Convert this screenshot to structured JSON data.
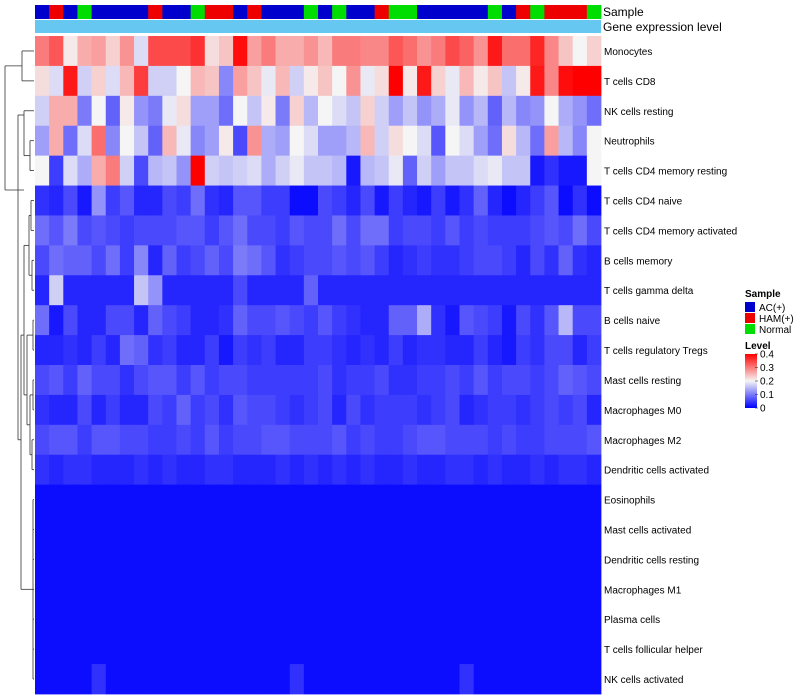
{
  "chart_data": {
    "type": "heatmap",
    "annotation_labels": {
      "sample": "Sample",
      "gene": "Gene expression level"
    },
    "rows": [
      "Monocytes",
      "T cells CD8",
      "NK cells resting",
      "Neutrophils",
      "T cells CD4 memory resting",
      "T cells CD4 naive",
      "T cells CD4 memory activated",
      "B cells memory",
      "T cells gamma delta",
      "B cells naive",
      "T cells regulatory  Tregs",
      "Mast cells resting",
      "Macrophages M0",
      "Macrophages M2",
      "Dendritic cells activated",
      "Eosinophils",
      "Mast cells activated",
      "Dendritic cells resting",
      "Macrophages M1",
      "Plasma cells",
      "T cells follicular helper",
      "NK cells activated"
    ],
    "sample_groups": [
      "AC(+)",
      "HAM(+)",
      "AC(+)",
      "Normal",
      "AC(+)",
      "AC(+)",
      "AC(+)",
      "AC(+)",
      "HAM(+)",
      "AC(+)",
      "AC(+)",
      "Normal",
      "HAM(+)",
      "HAM(+)",
      "AC(+)",
      "HAM(+)",
      "AC(+)",
      "AC(+)",
      "AC(+)",
      "Normal",
      "AC(+)",
      "Normal",
      "AC(+)",
      "AC(+)",
      "HAM(+)",
      "Normal",
      "Normal",
      "AC(+)",
      "AC(+)",
      "AC(+)",
      "AC(+)",
      "AC(+)",
      "Normal",
      "AC(+)",
      "HAM(+)",
      "Normal",
      "HAM(+)",
      "HAM(+)",
      "HAM(+)",
      "Normal"
    ],
    "values": [
      [
        0.3,
        0.33,
        0.21,
        0.26,
        0.27,
        0.23,
        0.28,
        0.18,
        0.34,
        0.34,
        0.34,
        0.36,
        0.22,
        0.24,
        0.39,
        0.27,
        0.3,
        0.26,
        0.26,
        0.28,
        0.25,
        0.3,
        0.3,
        0.29,
        0.29,
        0.33,
        0.31,
        0.28,
        0.3,
        0.34,
        0.32,
        0.28,
        0.38,
        0.31,
        0.31,
        0.37,
        0.29,
        0.24,
        0.2,
        0.23
      ],
      [
        0.22,
        0.18,
        0.38,
        0.17,
        0.23,
        0.18,
        0.25,
        0.35,
        0.17,
        0.17,
        0.2,
        0.25,
        0.24,
        0.11,
        0.27,
        0.24,
        0.19,
        0.25,
        0.17,
        0.21,
        0.24,
        0.2,
        0.28,
        0.19,
        0.22,
        0.4,
        0.21,
        0.38,
        0.23,
        0.19,
        0.25,
        0.21,
        0.24,
        0.16,
        0.21,
        0.38,
        0.29,
        0.39,
        0.4,
        0.4
      ],
      [
        0.17,
        0.26,
        0.26,
        0.1,
        0.2,
        0.08,
        0.21,
        0.12,
        0.1,
        0.19,
        0.22,
        0.13,
        0.13,
        0.09,
        0.2,
        0.16,
        0.21,
        0.1,
        0.23,
        0.15,
        0.2,
        0.18,
        0.16,
        0.23,
        0.17,
        0.13,
        0.16,
        0.12,
        0.14,
        0.19,
        0.12,
        0.15,
        0.08,
        0.15,
        0.11,
        0.12,
        0.2,
        0.14,
        0.12,
        0.09
      ],
      [
        0.13,
        0.26,
        0.09,
        0.18,
        0.31,
        0.11,
        0.2,
        0.16,
        0.08,
        0.25,
        0.19,
        0.11,
        0.13,
        0.21,
        0.06,
        0.28,
        0.14,
        0.13,
        0.2,
        0.18,
        0.13,
        0.13,
        0.15,
        0.25,
        0.17,
        0.22,
        0.2,
        0.18,
        0.07,
        0.2,
        0.18,
        0.13,
        0.09,
        0.22,
        0.15,
        0.09,
        0.27,
        0.15,
        0.11,
        0.2
      ],
      [
        0.2,
        0.05,
        0.18,
        0.14,
        0.26,
        0.3,
        0.17,
        0.06,
        0.15,
        0.16,
        0.12,
        0.4,
        0.17,
        0.16,
        0.17,
        0.18,
        0.14,
        0.17,
        0.19,
        0.16,
        0.16,
        0.15,
        0.02,
        0.15,
        0.16,
        0.19,
        0.08,
        0.17,
        0.13,
        0.16,
        0.16,
        0.18,
        0.19,
        0.16,
        0.16,
        0.02,
        0.04,
        0.02,
        0.02,
        0.2
      ],
      [
        0.04,
        0.03,
        0.06,
        0.02,
        0.12,
        0.05,
        0.07,
        0.03,
        0.03,
        0.06,
        0.05,
        0.09,
        0.04,
        0.03,
        0.07,
        0.07,
        0.05,
        0.05,
        0.01,
        0.01,
        0.06,
        0.05,
        0.03,
        0.06,
        0.02,
        0.05,
        0.03,
        0.02,
        0.05,
        0.02,
        0.04,
        0.08,
        0.03,
        0.01,
        0.03,
        0.05,
        0.07,
        0.01,
        0.04,
        0.01
      ],
      [
        0.09,
        0.07,
        0.1,
        0.06,
        0.07,
        0.06,
        0.05,
        0.06,
        0.06,
        0.06,
        0.07,
        0.07,
        0.05,
        0.07,
        0.09,
        0.06,
        0.06,
        0.05,
        0.07,
        0.06,
        0.06,
        0.09,
        0.06,
        0.09,
        0.09,
        0.05,
        0.06,
        0.06,
        0.05,
        0.07,
        0.05,
        0.06,
        0.05,
        0.05,
        0.05,
        0.06,
        0.07,
        0.06,
        0.09,
        0.06
      ],
      [
        0.06,
        0.09,
        0.08,
        0.08,
        0.06,
        0.09,
        0.05,
        0.11,
        0.03,
        0.08,
        0.05,
        0.06,
        0.08,
        0.06,
        0.1,
        0.09,
        0.07,
        0.04,
        0.05,
        0.06,
        0.06,
        0.07,
        0.06,
        0.07,
        0.05,
        0.03,
        0.04,
        0.05,
        0.04,
        0.04,
        0.05,
        0.06,
        0.06,
        0.05,
        0.03,
        0.06,
        0.04,
        0.08,
        0.04,
        0.03
      ],
      [
        0.03,
        0.17,
        0.03,
        0.03,
        0.03,
        0.03,
        0.03,
        0.16,
        0.12,
        0.03,
        0.03,
        0.03,
        0.03,
        0.03,
        0.06,
        0.03,
        0.03,
        0.03,
        0.03,
        0.08,
        0.03,
        0.03,
        0.03,
        0.03,
        0.03,
        0.03,
        0.03,
        0.03,
        0.03,
        0.03,
        0.03,
        0.03,
        0.03,
        0.03,
        0.03,
        0.03,
        0.03,
        0.03,
        0.03,
        0.03
      ],
      [
        0.09,
        0.02,
        0.06,
        0.03,
        0.03,
        0.06,
        0.06,
        0.03,
        0.08,
        0.06,
        0.05,
        0.03,
        0.03,
        0.04,
        0.08,
        0.06,
        0.06,
        0.07,
        0.06,
        0.05,
        0.07,
        0.05,
        0.04,
        0.03,
        0.03,
        0.08,
        0.08,
        0.14,
        0.04,
        0.02,
        0.07,
        0.06,
        0.05,
        0.02,
        0.06,
        0.04,
        0.07,
        0.15,
        0.06,
        0.06
      ],
      [
        0.03,
        0.03,
        0.04,
        0.03,
        0.05,
        0.03,
        0.09,
        0.08,
        0.04,
        0.05,
        0.03,
        0.03,
        0.05,
        0.02,
        0.05,
        0.04,
        0.05,
        0.03,
        0.03,
        0.05,
        0.05,
        0.04,
        0.03,
        0.04,
        0.03,
        0.05,
        0.03,
        0.04,
        0.04,
        0.03,
        0.03,
        0.05,
        0.03,
        0.02,
        0.05,
        0.04,
        0.06,
        0.06,
        0.03,
        0.05
      ],
      [
        0.06,
        0.07,
        0.05,
        0.08,
        0.06,
        0.06,
        0.04,
        0.06,
        0.07,
        0.07,
        0.05,
        0.07,
        0.05,
        0.06,
        0.06,
        0.05,
        0.05,
        0.05,
        0.05,
        0.05,
        0.06,
        0.04,
        0.05,
        0.05,
        0.06,
        0.04,
        0.04,
        0.05,
        0.05,
        0.06,
        0.05,
        0.07,
        0.05,
        0.06,
        0.06,
        0.05,
        0.06,
        0.08,
        0.07,
        0.06
      ],
      [
        0.04,
        0.03,
        0.03,
        0.06,
        0.03,
        0.05,
        0.03,
        0.03,
        0.06,
        0.05,
        0.08,
        0.05,
        0.06,
        0.04,
        0.07,
        0.06,
        0.06,
        0.05,
        0.04,
        0.05,
        0.06,
        0.03,
        0.06,
        0.04,
        0.05,
        0.05,
        0.05,
        0.04,
        0.05,
        0.06,
        0.03,
        0.04,
        0.05,
        0.05,
        0.04,
        0.05,
        0.06,
        0.05,
        0.06,
        0.03
      ],
      [
        0.06,
        0.07,
        0.07,
        0.05,
        0.07,
        0.07,
        0.06,
        0.06,
        0.05,
        0.05,
        0.06,
        0.05,
        0.07,
        0.05,
        0.06,
        0.06,
        0.07,
        0.07,
        0.06,
        0.06,
        0.06,
        0.07,
        0.05,
        0.06,
        0.05,
        0.05,
        0.06,
        0.07,
        0.07,
        0.06,
        0.06,
        0.06,
        0.05,
        0.06,
        0.05,
        0.05,
        0.06,
        0.06,
        0.06,
        0.07
      ],
      [
        0.04,
        0.03,
        0.04,
        0.04,
        0.03,
        0.03,
        0.03,
        0.04,
        0.03,
        0.04,
        0.03,
        0.03,
        0.04,
        0.04,
        0.03,
        0.03,
        0.03,
        0.04,
        0.03,
        0.04,
        0.03,
        0.04,
        0.03,
        0.04,
        0.03,
        0.03,
        0.04,
        0.03,
        0.03,
        0.04,
        0.04,
        0.03,
        0.04,
        0.03,
        0.03,
        0.04,
        0.03,
        0.04,
        0.04,
        0.03
      ],
      [
        0.01,
        0.01,
        0.01,
        0.01,
        0.01,
        0.01,
        0.01,
        0.01,
        0.01,
        0.01,
        0.01,
        0.01,
        0.01,
        0.01,
        0.01,
        0.01,
        0.01,
        0.01,
        0.01,
        0.01,
        0.01,
        0.01,
        0.01,
        0.01,
        0.01,
        0.01,
        0.01,
        0.01,
        0.01,
        0.01,
        0.01,
        0.01,
        0.01,
        0.01,
        0.01,
        0.01,
        0.01,
        0.01,
        0.01,
        0.01
      ],
      [
        0.01,
        0.01,
        0.01,
        0.01,
        0.01,
        0.01,
        0.01,
        0.01,
        0.01,
        0.01,
        0.01,
        0.01,
        0.01,
        0.01,
        0.01,
        0.01,
        0.01,
        0.01,
        0.01,
        0.01,
        0.01,
        0.01,
        0.01,
        0.01,
        0.01,
        0.01,
        0.01,
        0.01,
        0.01,
        0.01,
        0.01,
        0.01,
        0.01,
        0.01,
        0.01,
        0.01,
        0.01,
        0.01,
        0.01,
        0.01
      ],
      [
        0.01,
        0.01,
        0.01,
        0.01,
        0.01,
        0.01,
        0.01,
        0.01,
        0.01,
        0.01,
        0.01,
        0.01,
        0.01,
        0.01,
        0.01,
        0.01,
        0.01,
        0.01,
        0.01,
        0.01,
        0.01,
        0.01,
        0.01,
        0.01,
        0.01,
        0.01,
        0.01,
        0.01,
        0.01,
        0.01,
        0.01,
        0.01,
        0.01,
        0.01,
        0.01,
        0.01,
        0.01,
        0.01,
        0.01,
        0.01
      ],
      [
        0.01,
        0.01,
        0.01,
        0.01,
        0.01,
        0.01,
        0.01,
        0.01,
        0.01,
        0.01,
        0.01,
        0.01,
        0.01,
        0.01,
        0.01,
        0.01,
        0.01,
        0.01,
        0.01,
        0.01,
        0.01,
        0.01,
        0.01,
        0.01,
        0.01,
        0.01,
        0.01,
        0.01,
        0.01,
        0.01,
        0.01,
        0.01,
        0.01,
        0.01,
        0.01,
        0.01,
        0.01,
        0.01,
        0.01,
        0.01
      ],
      [
        0.01,
        0.01,
        0.01,
        0.01,
        0.01,
        0.01,
        0.01,
        0.01,
        0.01,
        0.01,
        0.01,
        0.01,
        0.01,
        0.01,
        0.01,
        0.01,
        0.01,
        0.01,
        0.01,
        0.01,
        0.01,
        0.01,
        0.01,
        0.01,
        0.01,
        0.01,
        0.01,
        0.01,
        0.01,
        0.01,
        0.01,
        0.01,
        0.01,
        0.01,
        0.01,
        0.01,
        0.01,
        0.01,
        0.01,
        0.01
      ],
      [
        0.01,
        0.01,
        0.01,
        0.01,
        0.01,
        0.01,
        0.01,
        0.01,
        0.01,
        0.01,
        0.01,
        0.01,
        0.01,
        0.01,
        0.01,
        0.01,
        0.01,
        0.01,
        0.01,
        0.01,
        0.01,
        0.01,
        0.01,
        0.01,
        0.01,
        0.01,
        0.01,
        0.01,
        0.01,
        0.01,
        0.01,
        0.01,
        0.01,
        0.01,
        0.01,
        0.01,
        0.01,
        0.01,
        0.01,
        0.01
      ],
      [
        0.01,
        0.01,
        0.01,
        0.01,
        0.04,
        0.01,
        0.01,
        0.01,
        0.01,
        0.01,
        0.01,
        0.01,
        0.01,
        0.01,
        0.01,
        0.01,
        0.01,
        0.01,
        0.04,
        0.01,
        0.01,
        0.01,
        0.01,
        0.01,
        0.01,
        0.01,
        0.01,
        0.01,
        0.01,
        0.01,
        0.04,
        0.01,
        0.01,
        0.01,
        0.01,
        0.01,
        0.01,
        0.01,
        0.01,
        0.01
      ]
    ],
    "color_scale": {
      "min": 0,
      "mid": 0.2,
      "max": 0.4,
      "low": "#0000FF",
      "midColor": "#F5F5F5",
      "high": "#FF0000"
    },
    "legend": {
      "sample_title": "Sample",
      "groups": [
        {
          "name": "AC(+)",
          "color": "#0000CC"
        },
        {
          "name": "HAM(+)",
          "color": "#EE0000"
        },
        {
          "name": "Normal",
          "color": "#00DD00"
        }
      ],
      "level_title": "Level",
      "level_ticks": [
        {
          "label": "0.4",
          "value": 0.4
        },
        {
          "label": "0.3",
          "value": 0.3
        },
        {
          "label": "0.2",
          "value": 0.2
        },
        {
          "label": "0.1",
          "value": 0.1
        },
        {
          "label": "0",
          "value": 0.0
        }
      ]
    },
    "gene_bar_color": "#66C8F0"
  }
}
